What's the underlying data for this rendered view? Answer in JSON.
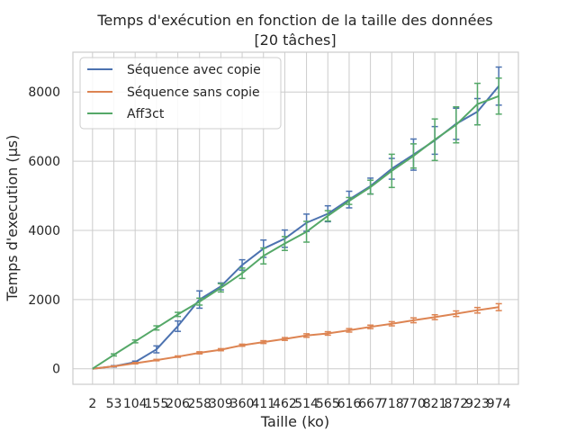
{
  "colors": {
    "series_1": "#4c72b0",
    "series_2": "#dd8452",
    "series_3": "#55a868",
    "grid": "#cccccc",
    "frame": "#cccccc",
    "text": "#262626"
  },
  "chart_data": {
    "type": "line",
    "title": "Temps d'exécution en fonction de la taille des données",
    "subtitle": "[20 tâches]",
    "xlabel": "Taille (ko)",
    "ylabel": "Temps d'execution (µs)",
    "x": [
      2,
      53,
      104,
      155,
      206,
      258,
      309,
      360,
      411,
      462,
      514,
      565,
      616,
      667,
      718,
      770,
      821,
      872,
      923,
      974
    ],
    "xlim": [
      -45,
      1021
    ],
    "ylim": [
      -450,
      9150
    ],
    "yticks": [
      0,
      2000,
      4000,
      6000,
      8000
    ],
    "grid": true,
    "legend_position": "top-left",
    "series": [
      {
        "name": "Séquence avec copie",
        "values": [
          0,
          70,
          190,
          560,
          1230,
          2000,
          2380,
          3000,
          3470,
          3760,
          4220,
          4480,
          4890,
          5280,
          5780,
          6190,
          6600,
          7080,
          7430,
          8170
        ],
        "error": [
          0,
          20,
          30,
          100,
          150,
          250,
          100,
          150,
          250,
          250,
          250,
          230,
          240,
          230,
          300,
          450,
          400,
          450,
          380,
          550
        ]
      },
      {
        "name": "Séquence sans copie",
        "values": [
          0,
          70,
          160,
          250,
          350,
          460,
          550,
          680,
          770,
          860,
          960,
          1020,
          1110,
          1210,
          1300,
          1400,
          1490,
          1590,
          1690,
          1780
        ],
        "error": [
          0,
          10,
          20,
          20,
          20,
          30,
          30,
          30,
          40,
          40,
          50,
          50,
          50,
          50,
          60,
          70,
          70,
          80,
          80,
          100
        ]
      },
      {
        "name": "Aff3ct",
        "values": [
          0,
          400,
          790,
          1180,
          1570,
          1940,
          2340,
          2760,
          3260,
          3620,
          3960,
          4420,
          4850,
          5250,
          5720,
          6150,
          6620,
          7050,
          7650,
          7880
        ],
        "error": [
          0,
          30,
          40,
          60,
          60,
          100,
          120,
          150,
          230,
          200,
          300,
          150,
          100,
          200,
          480,
          350,
          600,
          520,
          600,
          520
        ]
      }
    ]
  }
}
